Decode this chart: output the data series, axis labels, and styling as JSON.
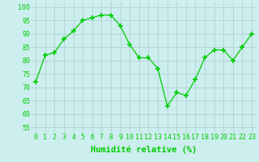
{
  "x": [
    0,
    1,
    2,
    3,
    4,
    5,
    6,
    7,
    8,
    9,
    10,
    11,
    12,
    13,
    14,
    15,
    16,
    17,
    18,
    19,
    20,
    21,
    22,
    23
  ],
  "y": [
    72,
    82,
    83,
    88,
    91,
    95,
    96,
    97,
    97,
    93,
    86,
    81,
    81,
    77,
    63,
    68,
    67,
    73,
    81,
    84,
    84,
    80,
    85,
    90
  ],
  "line_color": "#00cc00",
  "marker_color": "#00cc00",
  "bg_color": "#cceeee",
  "grid_color": "#aacccc",
  "xlabel": "Humidité relative (%)",
  "xlabel_color": "#00cc00",
  "ylabel_ticks": [
    55,
    60,
    65,
    70,
    75,
    80,
    85,
    90,
    95,
    100
  ],
  "xlim": [
    -0.5,
    23.5
  ],
  "ylim": [
    53,
    102
  ],
  "tick_fontsize": 6,
  "xlabel_fontsize": 7.5
}
